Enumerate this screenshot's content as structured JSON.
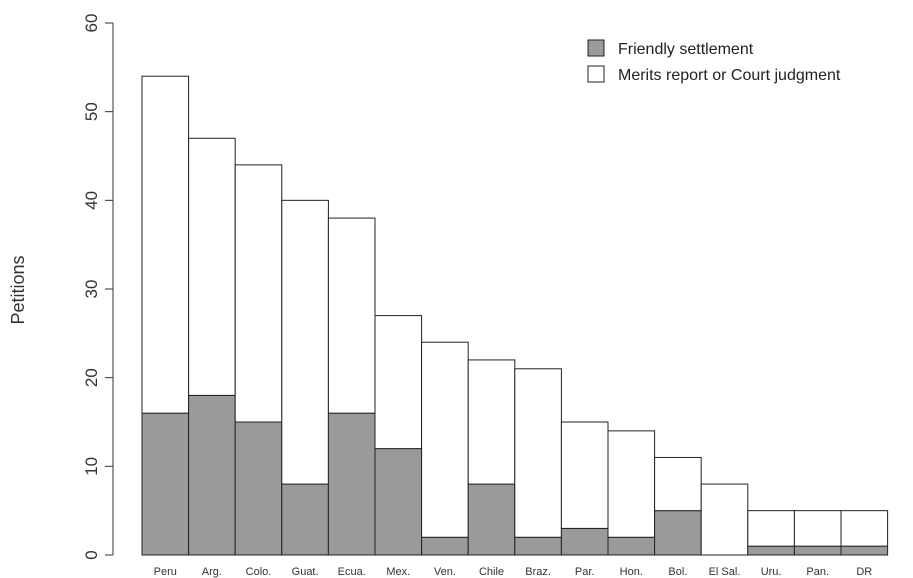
{
  "chart_data": {
    "type": "bar",
    "stacked": true,
    "title": "",
    "xlabel": "",
    "ylabel": "Petitions",
    "ylim": [
      0,
      60
    ],
    "yticks": [
      0,
      10,
      20,
      30,
      40,
      50,
      60
    ],
    "categories": [
      "Peru",
      "Arg.",
      "Colo.",
      "Guat.",
      "Ecua.",
      "Mex.",
      "Ven.",
      "Chile",
      "Braz.",
      "Par.",
      "Hon.",
      "Bol.",
      "El Sal.",
      "Uru.",
      "Pan.",
      "DR"
    ],
    "series": [
      {
        "name": "Friendly settlement",
        "color": "#9a9a9a",
        "values": [
          16,
          18,
          15,
          8,
          16,
          12,
          2,
          8,
          2,
          3,
          2,
          5,
          0,
          1,
          1,
          1
        ]
      },
      {
        "name": "Merits report or Court judgment",
        "color": "#ffffff",
        "values": [
          38,
          29,
          29,
          32,
          22,
          15,
          22,
          14,
          19,
          12,
          12,
          6,
          8,
          4,
          4,
          4
        ]
      }
    ],
    "totals": [
      54,
      47,
      44,
      40,
      38,
      27,
      24,
      22,
      21,
      15,
      14,
      11,
      8,
      5,
      5,
      5
    ],
    "grid": false,
    "legend_position": "top-right"
  }
}
